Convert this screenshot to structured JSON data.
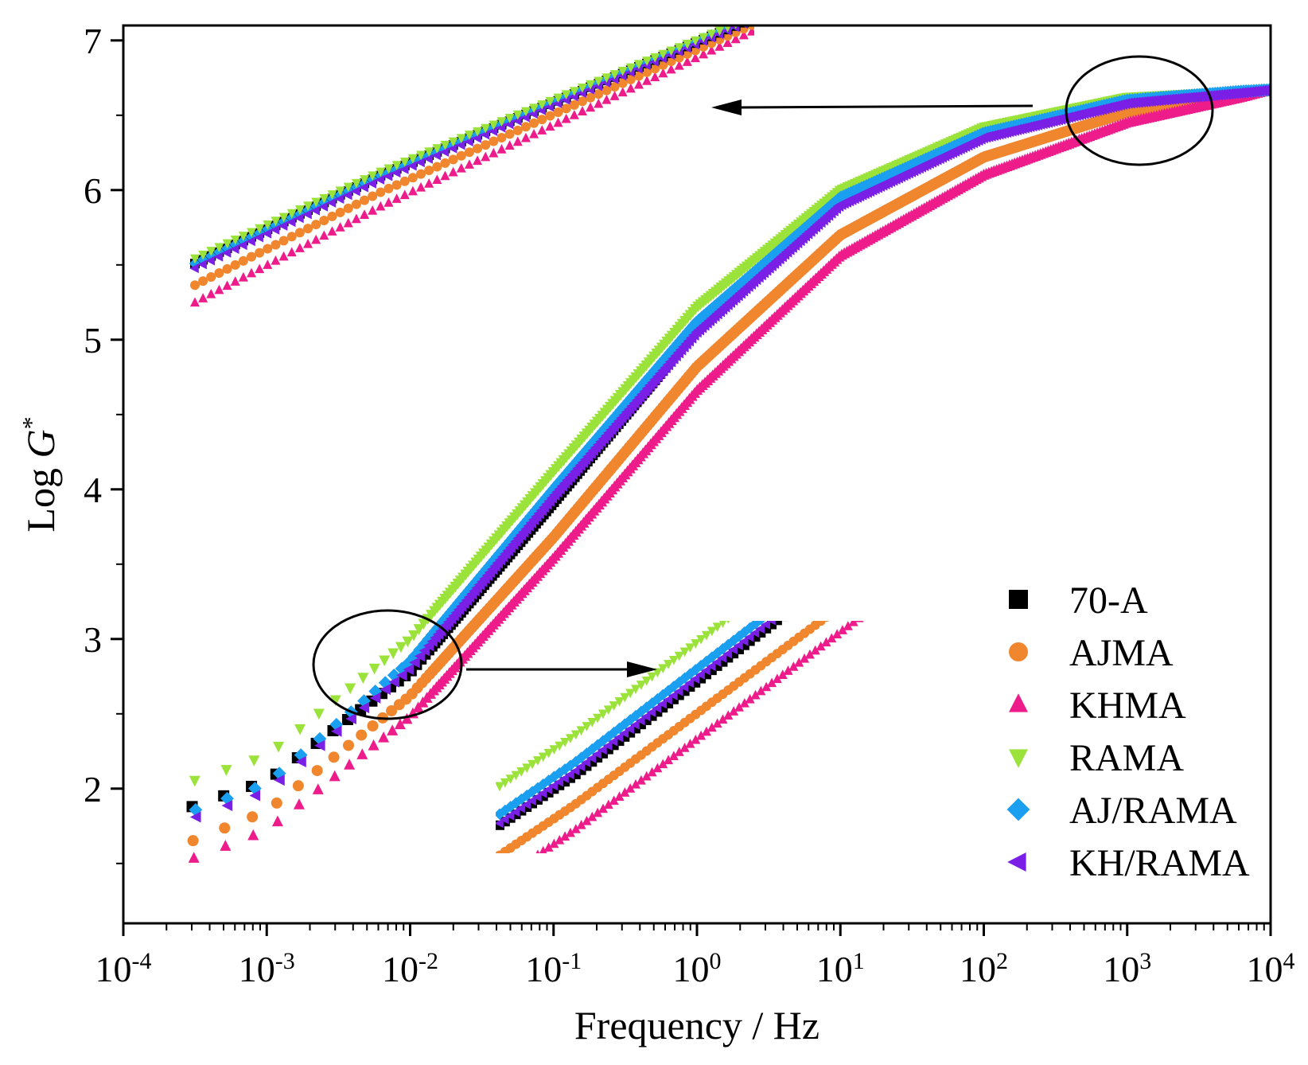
{
  "chart_data": {
    "type": "scatter",
    "title": "",
    "xlabel": "Frequency / Hz",
    "ylabel_prefix": "Log ",
    "ylabel_var": "G",
    "ylabel_sup": "*",
    "xscale": "log",
    "xlim_log10": [
      -4,
      4
    ],
    "ylim": [
      1.1,
      7.1
    ],
    "x_ticks": [
      {
        "base": "10",
        "exp": "-4",
        "value": -4
      },
      {
        "base": "10",
        "exp": "-3",
        "value": -3
      },
      {
        "base": "10",
        "exp": "-2",
        "value": -2
      },
      {
        "base": "10",
        "exp": "-1",
        "value": -1
      },
      {
        "base": "10",
        "exp": "0",
        "value": 0
      },
      {
        "base": "10",
        "exp": "1",
        "value": 1
      },
      {
        "base": "10",
        "exp": "2",
        "value": 2
      },
      {
        "base": "10",
        "exp": "3",
        "value": 3
      },
      {
        "base": "10",
        "exp": "4",
        "value": 4
      }
    ],
    "y_ticks": [
      {
        "label": "2",
        "value": 2
      },
      {
        "label": "3",
        "value": 3
      },
      {
        "label": "4",
        "value": 4
      },
      {
        "label": "5",
        "value": 5
      },
      {
        "label": "6",
        "value": 6
      },
      {
        "label": "7",
        "value": 7
      }
    ],
    "legend_position": "bottom-right",
    "x_range_log10": [
      -3.52,
      4.0
    ],
    "series": [
      {
        "name": "70-A",
        "marker": "square",
        "color": "#000000",
        "x_log10": [
          -3.52,
          -3.0,
          -2.0,
          -1.0,
          0.0,
          1.0,
          2.0,
          3.0,
          3.8,
          4.0
        ],
        "y": [
          1.88,
          2.05,
          2.78,
          3.92,
          5.08,
          5.95,
          6.38,
          6.6,
          6.65,
          6.67
        ]
      },
      {
        "name": "AJMA",
        "marker": "circle",
        "color": "#f0862d",
        "x_log10": [
          -3.52,
          -3.0,
          -2.0,
          -1.0,
          0.0,
          1.0,
          2.0,
          3.0,
          3.8,
          4.0
        ],
        "y": [
          1.65,
          1.85,
          2.62,
          3.68,
          4.82,
          5.7,
          6.22,
          6.52,
          6.64,
          6.67
        ]
      },
      {
        "name": "KHMA",
        "marker": "triangle-up",
        "color": "#ee1c8a",
        "x_log10": [
          -3.52,
          -3.0,
          -2.0,
          -1.0,
          0.0,
          1.0,
          2.0,
          3.0,
          3.8,
          4.0
        ],
        "y": [
          1.53,
          1.72,
          2.48,
          3.54,
          4.66,
          5.56,
          6.1,
          6.45,
          6.62,
          6.67
        ]
      },
      {
        "name": "RAMA",
        "marker": "triangle-down",
        "color": "#9be23a",
        "x_log10": [
          -3.52,
          -3.0,
          -2.0,
          -1.0,
          0.0,
          1.0,
          2.0,
          3.0,
          3.8,
          4.0
        ],
        "y": [
          2.05,
          2.22,
          3.0,
          4.12,
          5.22,
          6.0,
          6.42,
          6.62,
          6.66,
          6.67
        ]
      },
      {
        "name": "AJ/RAMA",
        "marker": "diamond",
        "color": "#1b9ff0",
        "x_log10": [
          -3.52,
          -3.0,
          -2.0,
          -1.0,
          0.0,
          1.0,
          2.0,
          3.0,
          3.8,
          4.0
        ],
        "y": [
          1.85,
          2.03,
          2.85,
          4.0,
          5.12,
          5.95,
          6.38,
          6.6,
          6.66,
          6.67
        ]
      },
      {
        "name": "KH/RAMA",
        "marker": "triangle-left",
        "color": "#7a1fe6",
        "x_log10": [
          -3.52,
          -3.0,
          -2.0,
          -1.0,
          0.0,
          1.0,
          2.0,
          3.0,
          3.8,
          4.0
        ],
        "y": [
          1.8,
          1.98,
          2.8,
          3.95,
          5.05,
          5.9,
          6.35,
          6.58,
          6.65,
          6.67
        ]
      }
    ],
    "annotations": [
      {
        "kind": "ellipse",
        "center_x_log10": 3.07,
        "center_y": 6.5,
        "target": "inset-top"
      },
      {
        "kind": "ellipse",
        "center_x_log10": -1.85,
        "center_y": 2.82,
        "target": "inset-bottom"
      }
    ]
  }
}
